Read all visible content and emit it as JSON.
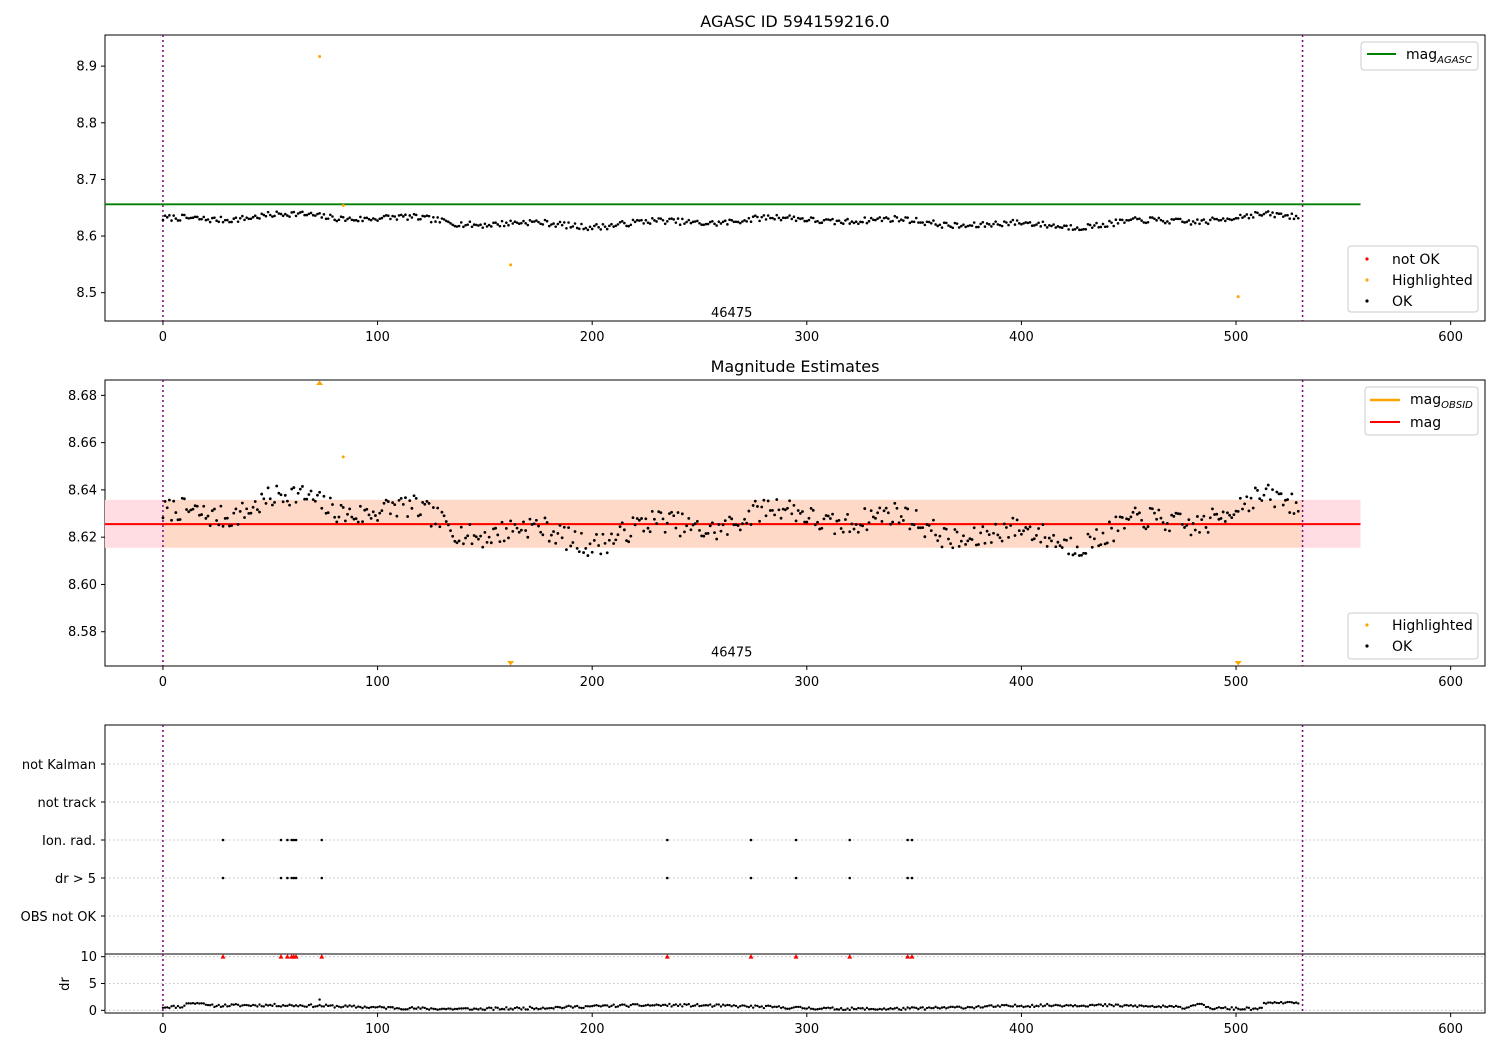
{
  "figure": {
    "title_top": "AGASC ID 594159216.0",
    "title_mid": "Magnitude Estimates",
    "obsid_label": "46475"
  },
  "colors": {
    "ok": "#000000",
    "highlighted": "#ffa500",
    "not_ok": "#ff0000",
    "mag_agasc_line": "#008000",
    "mag_line": "#ff0000",
    "mag_obsid_line": "#ffa500",
    "band_obsid": "#ffd9c7",
    "band_mag": "#ffdde2",
    "obs_boundary": "#800080"
  },
  "chart_data": [
    {
      "id": "top",
      "type": "scatter",
      "title": "AGASC ID 594159216.0",
      "xlim": [
        -27,
        616
      ],
      "ylim": [
        8.45,
        8.955
      ],
      "xticks": [
        0,
        100,
        200,
        300,
        400,
        500,
        600
      ],
      "yticks": [
        8.5,
        8.6,
        8.7,
        8.8,
        8.9
      ],
      "legend_upper": {
        "placement": "top-right",
        "entries": [
          {
            "label": "mag",
            "sub": "AGASC",
            "kind": "line",
            "color": "#008000"
          }
        ]
      },
      "legend_lower": {
        "placement": "bottom-right",
        "entries": [
          {
            "label": "not OK",
            "kind": "dot",
            "color": "#ff0000"
          },
          {
            "label": "Highlighted",
            "kind": "dot",
            "color": "#ffa500"
          },
          {
            "label": "OK",
            "kind": "dot",
            "color": "#000000"
          }
        ]
      },
      "mag_agasc": 8.656,
      "line_xrange": [
        -27,
        558
      ],
      "obs_boundaries": [
        0,
        531
      ],
      "annotation": {
        "text": "46475",
        "x": 265,
        "y": 8.457
      },
      "highlighted_points": [
        [
          73,
          8.917
        ],
        [
          84,
          8.654
        ],
        [
          162,
          8.549
        ],
        [
          501,
          8.493
        ]
      ],
      "ok_points_model": {
        "n": 530,
        "x_start": 0,
        "x_step": 1,
        "mean": 8.626,
        "spread": 0.012
      }
    },
    {
      "id": "mid",
      "type": "scatter",
      "title": "Magnitude Estimates",
      "xlim": [
        -27,
        616
      ],
      "ylim": [
        8.5655,
        8.6865
      ],
      "xticks": [
        0,
        100,
        200,
        300,
        400,
        500,
        600
      ],
      "yticks": [
        8.58,
        8.6,
        8.62,
        8.64,
        8.66,
        8.68
      ],
      "legend_upper": {
        "placement": "top-right",
        "entries": [
          {
            "label": "mag",
            "sub": "OBSID",
            "kind": "line",
            "color": "#ffa500"
          },
          {
            "label": "mag",
            "kind": "line",
            "color": "#ff0000"
          }
        ]
      },
      "legend_lower": {
        "placement": "bottom-right",
        "entries": [
          {
            "label": "Highlighted",
            "kind": "dot",
            "color": "#ffa500"
          },
          {
            "label": "OK",
            "kind": "dot",
            "color": "#000000"
          }
        ]
      },
      "mag": 8.6255,
      "mag_band": [
        8.6155,
        8.6358
      ],
      "line_xrange": [
        -27,
        558
      ],
      "obs_boundaries": [
        0,
        531
      ],
      "annotation": {
        "text": "46475",
        "x": 265,
        "y": 8.5695
      },
      "highlighted_points": [
        [
          84,
          8.654
        ]
      ],
      "out_of_range_markers": [
        {
          "x": 73,
          "dir": "up"
        },
        {
          "x": 162,
          "dir": "down"
        },
        {
          "x": 501,
          "dir": "down"
        }
      ],
      "ok_points_model": {
        "n": 530,
        "x_start": 0,
        "x_step": 1,
        "mean": 8.626,
        "spread": 0.011
      }
    },
    {
      "id": "flags",
      "type": "scatter",
      "xlim": [
        -27,
        616
      ],
      "categories": [
        "not Kalman",
        "not track",
        "Ion. rad.",
        "dr > 5",
        "OBS not OK"
      ],
      "obs_boundaries": [
        0,
        531
      ],
      "flagged_x": {
        "Ion. rad.": [
          28,
          55,
          58,
          60,
          61,
          62,
          74,
          235,
          274,
          295,
          320,
          347,
          349
        ],
        "dr > 5": [
          28,
          55,
          58,
          60,
          61,
          62,
          74,
          235,
          274,
          295,
          320,
          347,
          349
        ]
      }
    },
    {
      "id": "dr",
      "type": "scatter",
      "xlim": [
        -27,
        616
      ],
      "ylim": [
        -0.5,
        10.5
      ],
      "ylabel": "dr",
      "xticks": [
        0,
        100,
        200,
        300,
        400,
        500,
        600
      ],
      "yticks": [
        0,
        5,
        10
      ],
      "obs_boundaries": [
        0,
        531
      ],
      "clipped_x": [
        28,
        55,
        58,
        60,
        61,
        62,
        74,
        235,
        274,
        295,
        320,
        347,
        349
      ],
      "clip_value": 10,
      "ok_points_model": {
        "n": 530,
        "x_start": 0,
        "x_step": 1,
        "mean": 0.6,
        "spread": 0.4
      }
    }
  ]
}
